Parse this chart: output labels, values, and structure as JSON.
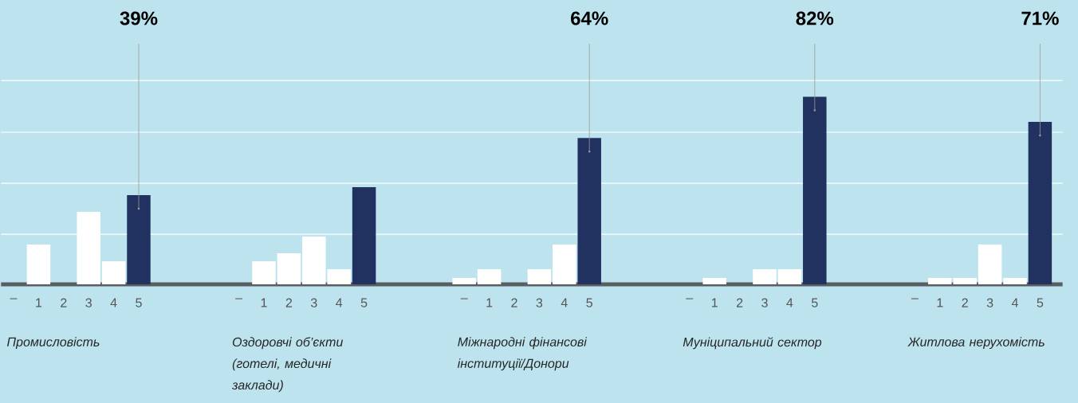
{
  "chart_data": {
    "type": "bar",
    "categories": [
      "–",
      "1",
      "2",
      "3",
      "4",
      "5",
      null,
      null,
      null,
      "–",
      "1",
      "2",
      "3",
      "4",
      "5",
      null,
      null,
      null,
      "–",
      "1",
      "2",
      "3",
      "4",
      "5",
      null,
      null,
      null,
      "–",
      "1",
      "2",
      "3",
      "4",
      "5",
      null,
      null,
      null,
      "–",
      "1",
      "2",
      "3",
      "4",
      "5"
    ],
    "values": [
      0,
      17.4,
      0,
      31.7,
      10.1,
      39,
      null,
      null,
      null,
      0,
      10.1,
      13.6,
      20.9,
      6.6,
      42.5,
      null,
      null,
      null,
      2.8,
      6.6,
      0,
      6.6,
      17.4,
      64,
      null,
      null,
      null,
      0,
      2.8,
      0,
      6.6,
      6.6,
      82,
      null,
      null,
      null,
      0,
      2.8,
      2.8,
      17.4,
      2.8,
      71
    ],
    "colors": [
      "#ffffff",
      "#ffffff",
      "#ffffff",
      "#ffffff",
      "#ffffff",
      "#213260",
      null,
      null,
      null,
      "#ffffff",
      "#ffffff",
      "#ffffff",
      "#ffffff",
      "#ffffff",
      "#213260",
      null,
      null,
      null,
      "#ffffff",
      "#ffffff",
      "#ffffff",
      "#ffffff",
      "#ffffff",
      "#213260",
      null,
      null,
      null,
      "#ffffff",
      "#ffffff",
      "#ffffff",
      "#ffffff",
      "#ffffff",
      "#213260",
      null,
      null,
      null,
      "#ffffff",
      "#ffffff",
      "#ffffff",
      "#ffffff",
      "#ffffff",
      "#213260"
    ],
    "value_labels": [
      null,
      null,
      null,
      null,
      null,
      "39%",
      null,
      null,
      null,
      null,
      null,
      null,
      null,
      null,
      null,
      null,
      null,
      null,
      null,
      null,
      null,
      null,
      null,
      "64%",
      null,
      null,
      null,
      null,
      null,
      null,
      null,
      null,
      "82%",
      null,
      null,
      null,
      null,
      null,
      null,
      null,
      null,
      "71%"
    ],
    "annotations": [
      "Промисловість",
      "Оздоровчі об’єкти (готелі, медичні заклади)",
      "Міжнародні фінансові інституції/Донори",
      "Муніципальний сектор",
      "Житлова нерухомість"
    ],
    "ylim": [
      0,
      124.3
    ],
    "yticks": [
      {
        "value": 21.9,
        "label": null
      },
      {
        "value": 44.2,
        "label": null
      },
      {
        "value": 66.5,
        "label": null
      },
      {
        "value": 89.1,
        "label": null
      }
    ],
    "grid": "y",
    "tick_labels": "x"
  }
}
